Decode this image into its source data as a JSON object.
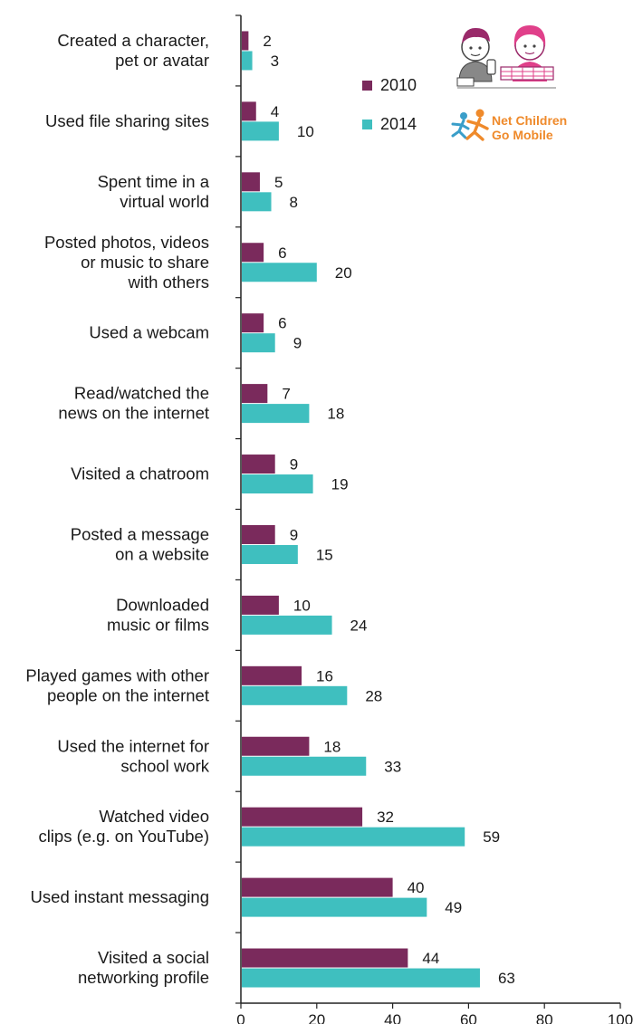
{
  "chart_data": {
    "type": "bar",
    "orientation": "horizontal",
    "categories": [
      [
        "Created a character,",
        "pet or avatar"
      ],
      [
        "Used file sharing sites"
      ],
      [
        "Spent time in a",
        "virtual world"
      ],
      [
        "Posted photos, videos",
        "or music to share",
        "with others"
      ],
      [
        "Used a webcam"
      ],
      [
        "Read/watched the",
        "news on the internet"
      ],
      [
        "Visited a chatroom"
      ],
      [
        "Posted a message",
        "on a website"
      ],
      [
        "Downloaded",
        "music or films"
      ],
      [
        "Played games with other",
        "people on the internet"
      ],
      [
        "Used the internet for",
        "school work"
      ],
      [
        "Watched video",
        "clips (e.g. on YouTube)"
      ],
      [
        "Used instant messaging"
      ],
      [
        "Visited a social",
        "networking profile"
      ]
    ],
    "series": [
      {
        "name": "2010",
        "color": "#7a2a5c",
        "values": [
          2,
          4,
          5,
          6,
          6,
          7,
          9,
          9,
          10,
          16,
          18,
          32,
          40,
          44
        ]
      },
      {
        "name": "2014",
        "color": "#3fbfbf",
        "values": [
          3,
          10,
          8,
          20,
          9,
          18,
          19,
          15,
          24,
          28,
          33,
          59,
          49,
          63
        ]
      }
    ],
    "xlim": [
      0,
      100
    ],
    "xticks": [
      0,
      20,
      40,
      60,
      80,
      100
    ],
    "title": "",
    "xlabel": "",
    "ylabel": "",
    "grid": false,
    "legend_position": "top-right"
  },
  "logo": {
    "line1": "Net Children",
    "line2": "Go Mobile",
    "text_color": "#ef8a2b",
    "figure_colors": [
      "#ef8a2b",
      "#3a9ec9"
    ],
    "illustration_colors": [
      "#e0408a",
      "#9a2a6a",
      "#555555"
    ]
  }
}
